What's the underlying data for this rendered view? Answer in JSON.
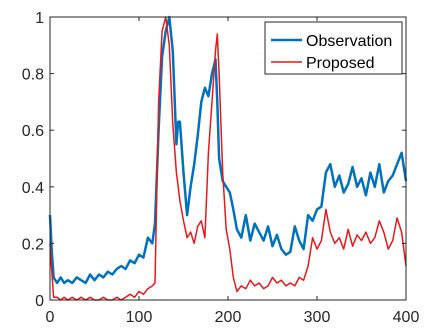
{
  "chart_data": {
    "type": "line",
    "title": "",
    "xlabel": "",
    "ylabel": "",
    "xlim": [
      0,
      400
    ],
    "ylim": [
      0,
      1
    ],
    "xticks": [
      0,
      100,
      200,
      300,
      400
    ],
    "yticks": [
      0,
      0.2,
      0.4,
      0.6,
      0.8,
      1
    ],
    "ytick_labels": [
      "0",
      "0.2",
      "0.4",
      "0.6",
      "0.8",
      "1"
    ],
    "grid": false,
    "legend_position": "top-right",
    "series": [
      {
        "name": "Observation",
        "color": "#0072BD",
        "x": [
          0,
          2,
          4,
          8,
          12,
          16,
          20,
          25,
          30,
          35,
          40,
          45,
          50,
          55,
          60,
          65,
          70,
          75,
          80,
          85,
          90,
          95,
          100,
          105,
          110,
          115,
          118,
          122,
          126,
          130,
          134,
          138,
          142,
          144,
          146,
          150,
          154,
          158,
          162,
          166,
          170,
          174,
          178,
          182,
          186,
          188,
          190,
          194,
          198,
          202,
          206,
          210,
          215,
          220,
          225,
          230,
          235,
          240,
          245,
          250,
          255,
          260,
          265,
          270,
          275,
          280,
          285,
          290,
          295,
          300,
          305,
          310,
          315,
          320,
          325,
          330,
          335,
          340,
          345,
          350,
          355,
          360,
          365,
          370,
          375,
          380,
          385,
          390,
          395,
          400
        ],
        "values": [
          0.3,
          0.17,
          0.08,
          0.06,
          0.08,
          0.06,
          0.07,
          0.06,
          0.08,
          0.07,
          0.06,
          0.09,
          0.07,
          0.09,
          0.08,
          0.1,
          0.09,
          0.11,
          0.12,
          0.11,
          0.14,
          0.13,
          0.16,
          0.15,
          0.22,
          0.2,
          0.27,
          0.6,
          0.86,
          0.95,
          1.0,
          0.88,
          0.55,
          0.63,
          0.63,
          0.45,
          0.3,
          0.4,
          0.48,
          0.58,
          0.7,
          0.75,
          0.72,
          0.8,
          0.85,
          0.7,
          0.5,
          0.42,
          0.4,
          0.38,
          0.32,
          0.25,
          0.22,
          0.3,
          0.21,
          0.27,
          0.24,
          0.21,
          0.26,
          0.19,
          0.23,
          0.18,
          0.16,
          0.17,
          0.26,
          0.21,
          0.18,
          0.3,
          0.28,
          0.32,
          0.33,
          0.45,
          0.48,
          0.4,
          0.44,
          0.38,
          0.41,
          0.47,
          0.4,
          0.43,
          0.37,
          0.45,
          0.4,
          0.48,
          0.38,
          0.42,
          0.44,
          0.48,
          0.52,
          0.42
        ]
      },
      {
        "name": "Proposed",
        "color": "#E61919",
        "x": [
          0,
          2,
          4,
          8,
          12,
          16,
          20,
          25,
          30,
          35,
          40,
          45,
          50,
          55,
          60,
          65,
          70,
          75,
          80,
          85,
          90,
          95,
          100,
          105,
          110,
          115,
          118,
          122,
          126,
          130,
          134,
          138,
          142,
          144,
          146,
          150,
          154,
          158,
          162,
          166,
          170,
          174,
          178,
          182,
          186,
          188,
          190,
          194,
          198,
          202,
          206,
          210,
          215,
          220,
          225,
          230,
          235,
          240,
          245,
          250,
          255,
          260,
          265,
          270,
          275,
          280,
          285,
          290,
          295,
          300,
          305,
          310,
          315,
          320,
          325,
          330,
          335,
          340,
          345,
          350,
          355,
          360,
          365,
          370,
          375,
          380,
          385,
          390,
          395,
          400
        ],
        "values": [
          0.2,
          0.1,
          0.01,
          0.01,
          0.0,
          0.01,
          0.0,
          0.01,
          0.0,
          0.01,
          0.0,
          0.01,
          0.0,
          0.0,
          0.01,
          0.0,
          0.0,
          0.01,
          0.0,
          0.01,
          0.02,
          0.01,
          0.03,
          0.02,
          0.04,
          0.05,
          0.06,
          0.7,
          0.95,
          1.0,
          0.9,
          0.62,
          0.45,
          0.4,
          0.35,
          0.28,
          0.22,
          0.24,
          0.2,
          0.26,
          0.28,
          0.22,
          0.52,
          0.7,
          0.88,
          0.94,
          0.8,
          0.45,
          0.25,
          0.18,
          0.08,
          0.03,
          0.05,
          0.04,
          0.07,
          0.05,
          0.06,
          0.04,
          0.05,
          0.08,
          0.06,
          0.07,
          0.05,
          0.06,
          0.05,
          0.08,
          0.07,
          0.12,
          0.22,
          0.18,
          0.21,
          0.32,
          0.24,
          0.2,
          0.22,
          0.18,
          0.25,
          0.19,
          0.23,
          0.21,
          0.24,
          0.2,
          0.22,
          0.28,
          0.24,
          0.18,
          0.21,
          0.29,
          0.24,
          0.12
        ]
      }
    ]
  }
}
